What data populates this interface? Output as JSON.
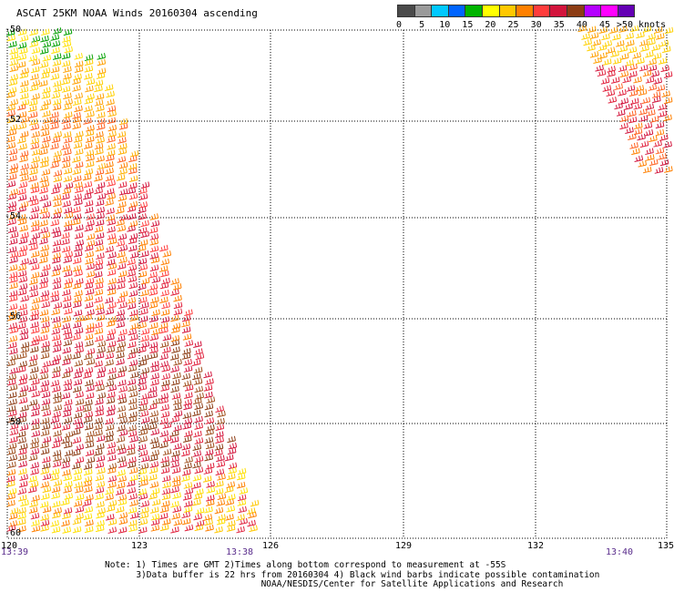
{
  "title": "ASCAT 25KM NOAA Winds 20160304 ascending",
  "legend": {
    "colors": [
      "#4a4a4a",
      "#9a9a9a",
      "#00c8ff",
      "#0064ff",
      "#00b400",
      "#ffff00",
      "#ffc800",
      "#ff8000",
      "#ff3c3c",
      "#d2143c",
      "#8c3c14",
      "#b400ff",
      "#ff00ff",
      "#6400b4"
    ],
    "labels": [
      "0",
      "5",
      "10",
      "15",
      "20",
      "25",
      "30",
      "35",
      "40",
      "45",
      ">50 knots"
    ]
  },
  "map": {
    "lon_labels": [
      "120",
      "123",
      "126",
      "129",
      "132",
      "135"
    ],
    "lat_labels": [
      "-50",
      "-52",
      "-54",
      "-56",
      "-58",
      "-60"
    ],
    "times": [
      "13:39",
      "13:38",
      "13:40"
    ]
  },
  "notes": [
    "Note: 1) Times are GMT 2)Times along bottom correspond to measurement at -55S",
    "      3)Data buffer is 22 hrs from 20160304 4) Black wind barbs indicate possible contamination",
    "                              NOAA/NESDIS/Center for Satellite Applications and Research"
  ]
}
